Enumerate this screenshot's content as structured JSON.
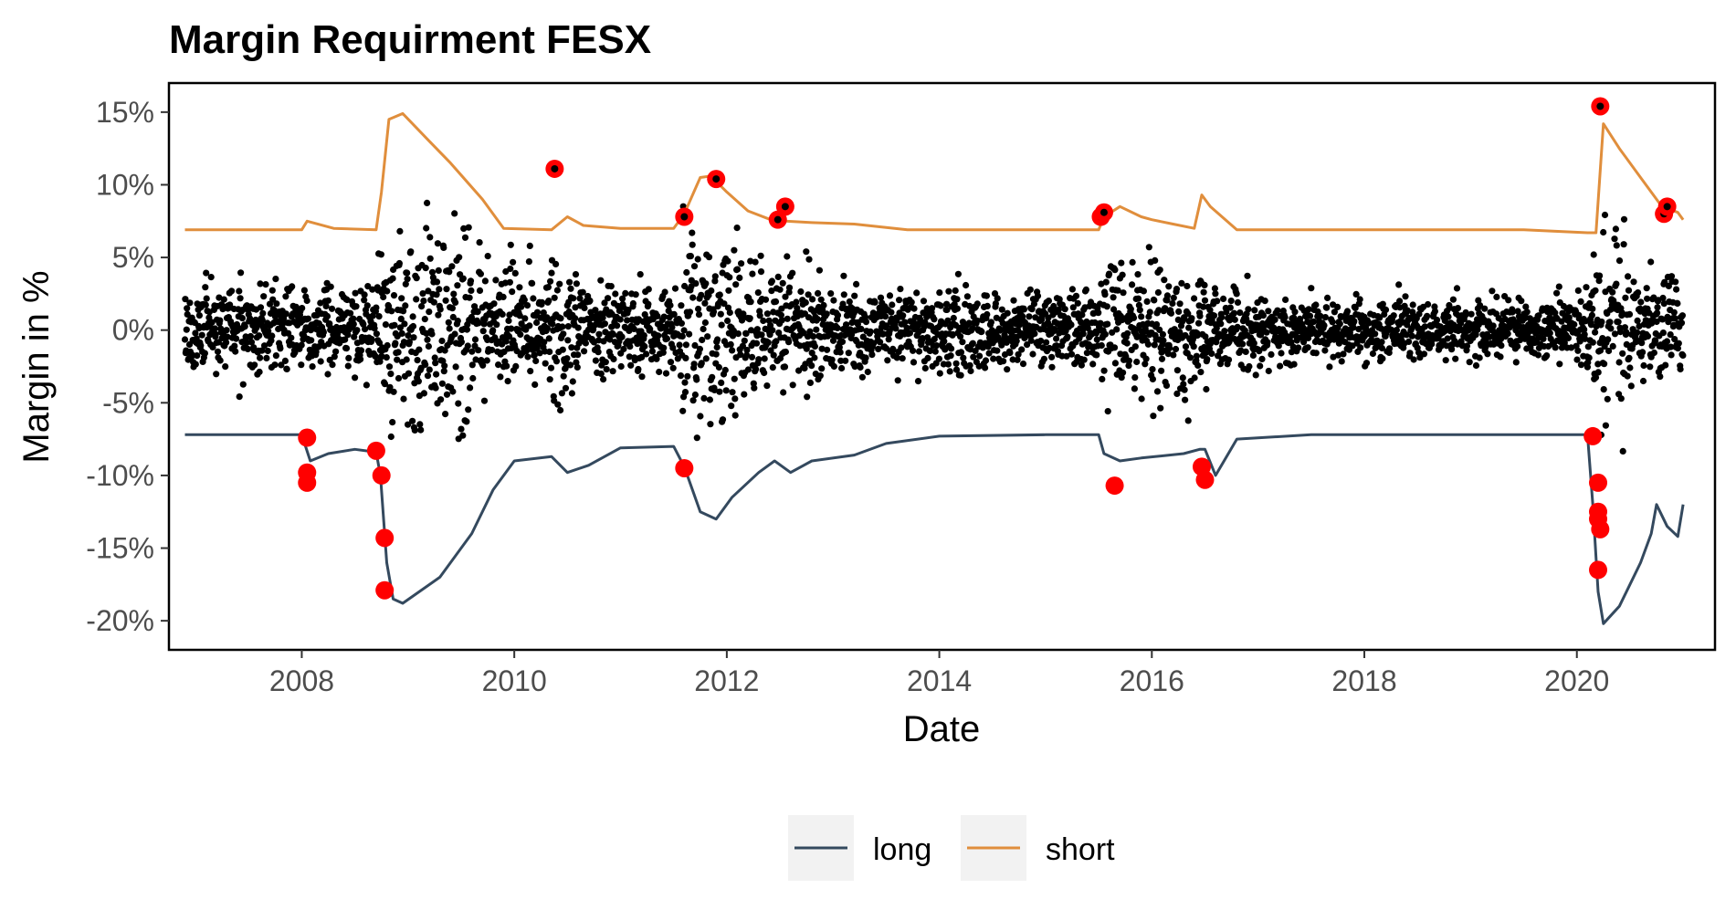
{
  "chart_data": {
    "type": "line",
    "title": "Margin Requirment FESX",
    "xlabel": "Date",
    "ylabel": "Margin in %",
    "xlim": [
      2006.75,
      2021.3
    ],
    "ylim": [
      -22,
      17
    ],
    "x_ticks": [
      2008,
      2010,
      2012,
      2014,
      2016,
      2018,
      2020
    ],
    "x_tick_labels": [
      "2008",
      "2010",
      "2012",
      "2014",
      "2016",
      "2018",
      "2020"
    ],
    "y_ticks": [
      15,
      10,
      5,
      0,
      -5,
      -10,
      -15,
      -20
    ],
    "y_tick_labels": [
      "15%",
      "10%",
      "5%",
      "0%",
      "-5%",
      "-10%",
      "-15%",
      "-20%"
    ],
    "grid": false,
    "legend_position": "bottom",
    "colors": {
      "long": "#34495e",
      "short": "#e08e3c",
      "returns": "#000000",
      "breach": "#ff0000"
    },
    "series": [
      {
        "name": "long",
        "x": [
          2006.9,
          2008.0,
          2008.08,
          2008.25,
          2008.5,
          2008.7,
          2008.74,
          2008.8,
          2008.86,
          2008.95,
          2009.3,
          2009.6,
          2009.8,
          2010.0,
          2010.35,
          2010.5,
          2010.7,
          2011.0,
          2011.5,
          2011.6,
          2011.75,
          2011.9,
          2012.05,
          2012.3,
          2012.45,
          2012.6,
          2012.8,
          2013.2,
          2013.5,
          2014.0,
          2015.0,
          2015.5,
          2015.55,
          2015.7,
          2015.9,
          2016.3,
          2016.45,
          2016.5,
          2016.6,
          2016.8,
          2017.5,
          2019.5,
          2020.1,
          2020.15,
          2020.2,
          2020.25,
          2020.4,
          2020.6,
          2020.7,
          2020.75,
          2020.85,
          2020.95,
          2021.0
        ],
        "values": [
          -7.2,
          -7.2,
          -9.0,
          -8.5,
          -8.2,
          -8.4,
          -10.0,
          -16.0,
          -18.5,
          -18.8,
          -17.0,
          -14.0,
          -11.0,
          -9.0,
          -8.7,
          -9.8,
          -9.3,
          -8.1,
          -8.0,
          -9.4,
          -12.5,
          -13.0,
          -11.5,
          -9.8,
          -9.0,
          -9.8,
          -9.0,
          -8.6,
          -7.8,
          -7.3,
          -7.2,
          -7.2,
          -8.5,
          -9.0,
          -8.8,
          -8.5,
          -8.2,
          -8.2,
          -10.0,
          -7.5,
          -7.2,
          -7.2,
          -7.2,
          -12.0,
          -18.0,
          -20.2,
          -19.0,
          -16.0,
          -14.0,
          -12.0,
          -13.5,
          -14.2,
          -12.0
        ]
      },
      {
        "name": "short",
        "x": [
          2006.9,
          2008.0,
          2008.05,
          2008.3,
          2008.7,
          2008.75,
          2008.82,
          2008.95,
          2009.2,
          2009.4,
          2009.7,
          2009.9,
          2010.35,
          2010.5,
          2010.65,
          2011.0,
          2011.5,
          2011.6,
          2011.75,
          2011.85,
          2012.0,
          2012.2,
          2012.45,
          2012.55,
          2012.8,
          2013.2,
          2013.7,
          2015.5,
          2015.55,
          2015.7,
          2015.9,
          2016.0,
          2016.2,
          2016.4,
          2016.47,
          2016.55,
          2016.8,
          2019.5,
          2020.1,
          2020.18,
          2020.25,
          2020.4,
          2020.6,
          2020.8,
          2020.95,
          2021.0
        ],
        "values": [
          6.9,
          6.9,
          7.5,
          7.0,
          6.9,
          9.5,
          14.5,
          14.9,
          13.0,
          11.5,
          9.0,
          7.0,
          6.9,
          7.8,
          7.2,
          7.0,
          7.0,
          8.0,
          10.5,
          10.6,
          9.5,
          8.2,
          7.5,
          7.5,
          7.4,
          7.3,
          6.9,
          6.9,
          7.8,
          8.5,
          7.8,
          7.6,
          7.3,
          7.0,
          9.3,
          8.5,
          6.9,
          6.9,
          6.7,
          6.7,
          14.2,
          12.5,
          10.5,
          8.5,
          8.1,
          7.6
        ]
      }
    ],
    "breaches_long": {
      "x": [
        2008.05,
        2008.05,
        2008.05,
        2008.7,
        2008.75,
        2008.78,
        2008.78,
        2011.6,
        2015.65,
        2016.47,
        2016.5,
        2020.15,
        2020.2,
        2020.2,
        2020.2,
        2020.22,
        2020.2
      ],
      "values": [
        -7.4,
        -9.8,
        -10.5,
        -8.3,
        -10.0,
        -14.3,
        -17.9,
        -9.5,
        -10.7,
        -9.4,
        -10.3,
        -7.3,
        -10.5,
        -12.5,
        -13.0,
        -13.7,
        -16.5
      ]
    },
    "breaches_short": {
      "x": [
        2010.38,
        2011.6,
        2011.9,
        2012.48,
        2012.55,
        2015.52,
        2015.55,
        2020.22,
        2020.82,
        2020.85
      ],
      "values": [
        11.1,
        7.8,
        10.4,
        7.6,
        8.5,
        7.8,
        8.1,
        15.4,
        8.0,
        8.5
      ]
    }
  },
  "legend": {
    "items": [
      {
        "name": "long",
        "label": "long"
      },
      {
        "name": "short",
        "label": "short"
      }
    ]
  }
}
